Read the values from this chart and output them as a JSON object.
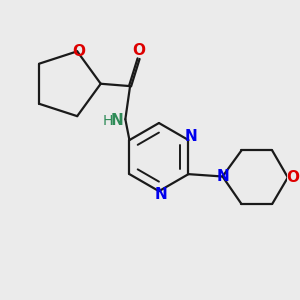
{
  "bg_color": "#ebebeb",
  "bond_color": "#1a1a1a",
  "N_color": "#0000ee",
  "O_color": "#dd0000",
  "NH_color": "#2e8b57",
  "line_width": 1.6,
  "dbo": 0.022,
  "xlim": [
    0,
    6.0
  ],
  "ylim": [
    0,
    6.0
  ]
}
